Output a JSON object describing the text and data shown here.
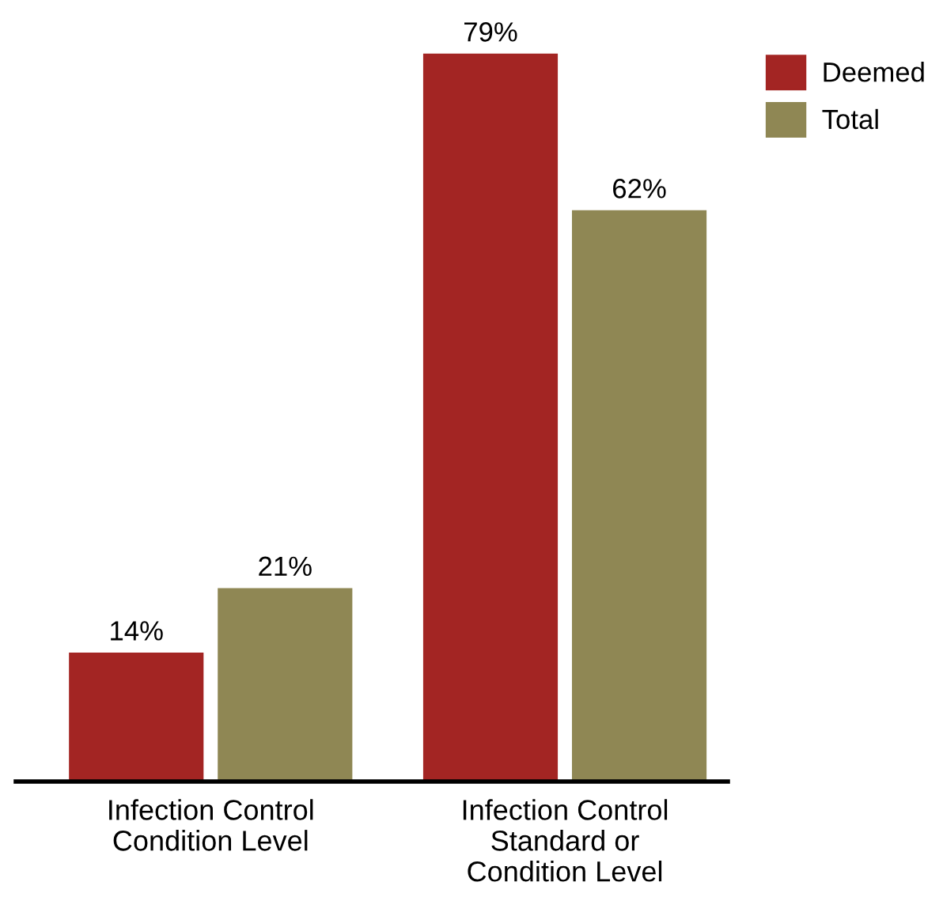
{
  "chart_data": {
    "type": "bar",
    "categories": [
      "Infection Control\nCondition Level",
      "Infection Control\nStandard or\nCondition Level"
    ],
    "series": [
      {
        "name": "Deemed",
        "color": "#a32523",
        "values": [
          14,
          79
        ],
        "value_labels": [
          "14%",
          "79%"
        ]
      },
      {
        "name": "Total",
        "color": "#8f8754",
        "values": [
          21,
          62
        ],
        "value_labels": [
          "21%",
          "62%"
        ]
      }
    ],
    "legend": "top right",
    "grid": false
  }
}
